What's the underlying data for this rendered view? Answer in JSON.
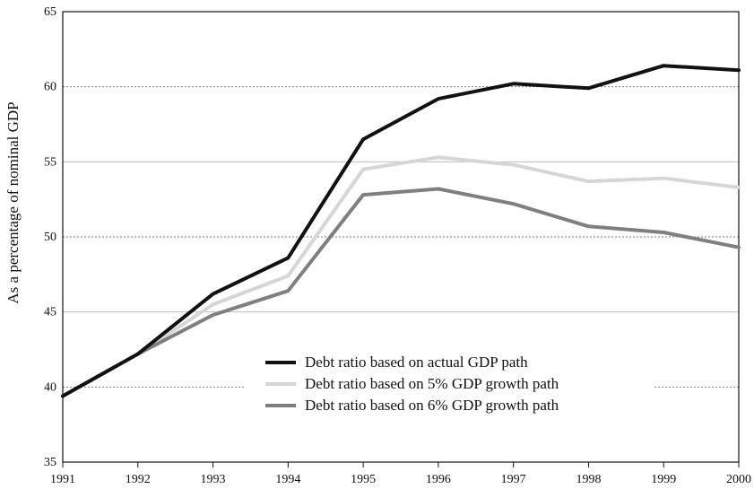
{
  "chart_data": {
    "type": "line",
    "title": "",
    "xlabel": "",
    "ylabel": "As a percentage of nominal GDP",
    "x": [
      "1991",
      "1992",
      "1993",
      "1994",
      "1995",
      "1996",
      "1997",
      "1998",
      "1999",
      "2000"
    ],
    "ylim": [
      35,
      65
    ],
    "yticks": [
      "35",
      "40",
      "45",
      "50",
      "55",
      "60",
      "65"
    ],
    "grid": "horizontal",
    "legend_position": "bottom-center",
    "series": [
      {
        "name": "Debt ratio based on actual GDP path",
        "color": "#111111",
        "values": [
          39.4,
          42.2,
          46.2,
          48.6,
          56.5,
          59.2,
          60.2,
          59.9,
          61.4,
          61.1
        ]
      },
      {
        "name": "Debt ratio based on 5% GDP growth path",
        "color": "#d6d6d6",
        "values": [
          39.4,
          42.2,
          45.5,
          47.4,
          54.5,
          55.3,
          54.8,
          53.7,
          53.9,
          53.3
        ]
      },
      {
        "name": "Debt ratio based on 6% GDP growth path",
        "color": "#7f7f7f",
        "values": [
          39.4,
          42.2,
          44.8,
          46.4,
          52.8,
          53.2,
          52.2,
          50.7,
          50.3,
          49.3
        ]
      }
    ]
  }
}
